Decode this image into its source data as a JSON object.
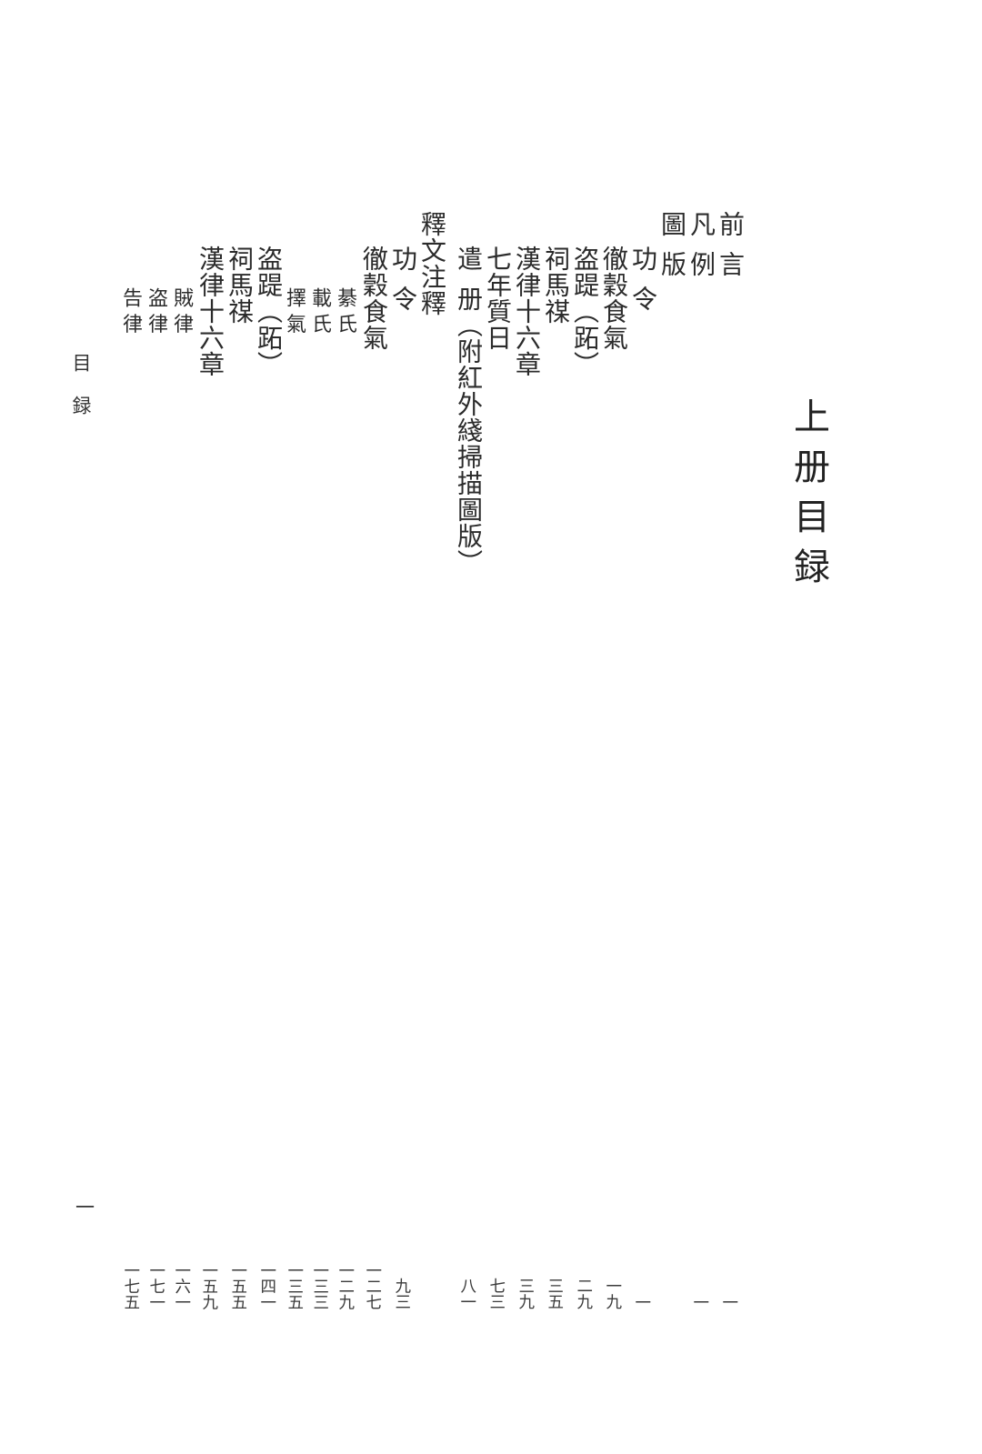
{
  "document": {
    "volume_title": "上册目録",
    "running_header": "目録",
    "folio_number": "一",
    "ink_color": "#2b2b2b",
    "leader_dot_color": "#7a7a7a"
  },
  "toc": {
    "columns": [
      {
        "label": "前 言",
        "page": "一",
        "indent": 0
      },
      {
        "label": "凡 例",
        "page": "一",
        "indent": 0
      },
      {
        "label": "圖 版",
        "header": true,
        "indent": 0
      },
      {
        "label": "功 令",
        "page": "一",
        "indent": 1
      },
      {
        "label": "徹穀食氣",
        "page": "一九",
        "indent": 1
      },
      {
        "label": "盗踶（跖）",
        "page": "二九",
        "indent": 1
      },
      {
        "label": "祠馬禖",
        "page": "三五",
        "indent": 1
      },
      {
        "label": "漢律十六章",
        "page": "三九",
        "indent": 1
      },
      {
        "label": "七年質日",
        "page": "七三",
        "indent": 1
      },
      {
        "label": "遣 册（附紅外綫掃描圖版）",
        "page": "八一",
        "indent": 1
      },
      {
        "label": "釋文注釋",
        "header": true,
        "indent": 0,
        "gap": true
      },
      {
        "label": "功 令",
        "page": "九三",
        "indent": 1
      },
      {
        "label": "徹穀食氣",
        "page": "一二七",
        "indent": 1
      },
      {
        "label": "綦 氏",
        "page": "一二九",
        "indent": 2,
        "small": true
      },
      {
        "label": "載 氏",
        "page": "一三三",
        "indent": 2,
        "small": true
      },
      {
        "label": "擇 氣",
        "page": "一三五",
        "indent": 2,
        "small": true
      },
      {
        "label": "盗踶（跖）",
        "page": "一四一",
        "indent": 1
      },
      {
        "label": "祠馬禖",
        "page": "一五五",
        "indent": 1
      },
      {
        "label": "漢律十六章",
        "page": "一五九",
        "indent": 1
      },
      {
        "label": "賊 律",
        "page": "一六一",
        "indent": 2,
        "small": true
      },
      {
        "label": "盗 律",
        "page": "一七一",
        "indent": 2,
        "small": true
      },
      {
        "label": "告 律",
        "page": "一七五",
        "indent": 2,
        "small": true
      }
    ]
  }
}
